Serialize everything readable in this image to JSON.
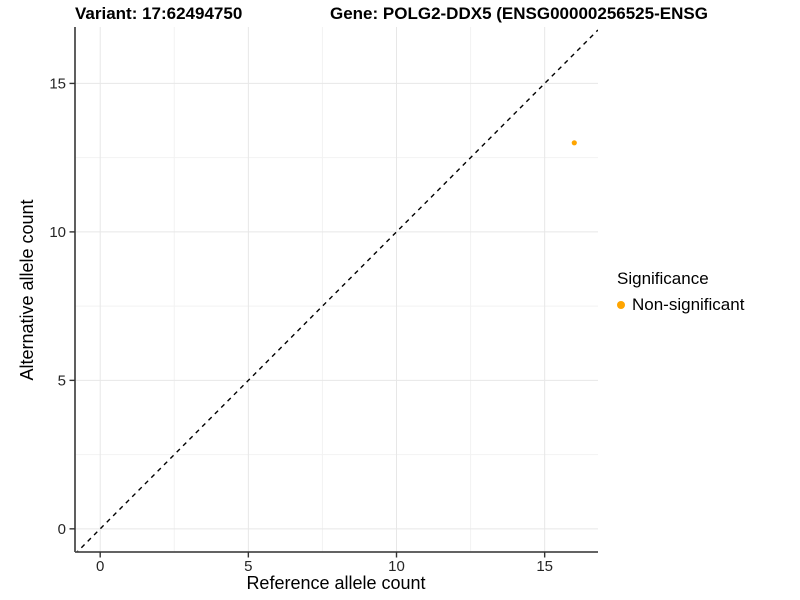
{
  "chart_data": {
    "type": "scatter",
    "title_left": "Variant: 17:62494750",
    "title_right": "Gene: POLG2-DDX5 (ENSG00000256525-ENSG",
    "xlabel": "Reference allele count",
    "ylabel": "Alternative allele count",
    "xlim": [
      -0.85,
      16.8
    ],
    "ylim": [
      -0.78,
      16.9
    ],
    "x_major_ticks": [
      0,
      5,
      10,
      15
    ],
    "y_major_ticks": [
      0,
      5,
      10,
      15
    ],
    "x_minor_ticks": [
      2.5,
      7.5,
      12.5
    ],
    "y_minor_ticks": [
      2.5,
      7.5,
      12.5
    ],
    "grid": true,
    "points": [
      {
        "x": 16,
        "y": 13,
        "series": "Non-significant"
      }
    ],
    "identity_line": {
      "slope": 1,
      "intercept": 0,
      "style": "dashed",
      "color": "#000000"
    },
    "point_color": "#FFA500",
    "legend": {
      "title": "Significance",
      "position": "right",
      "entries": [
        {
          "label": "Non-significant",
          "color": "#FFA500"
        }
      ]
    }
  }
}
